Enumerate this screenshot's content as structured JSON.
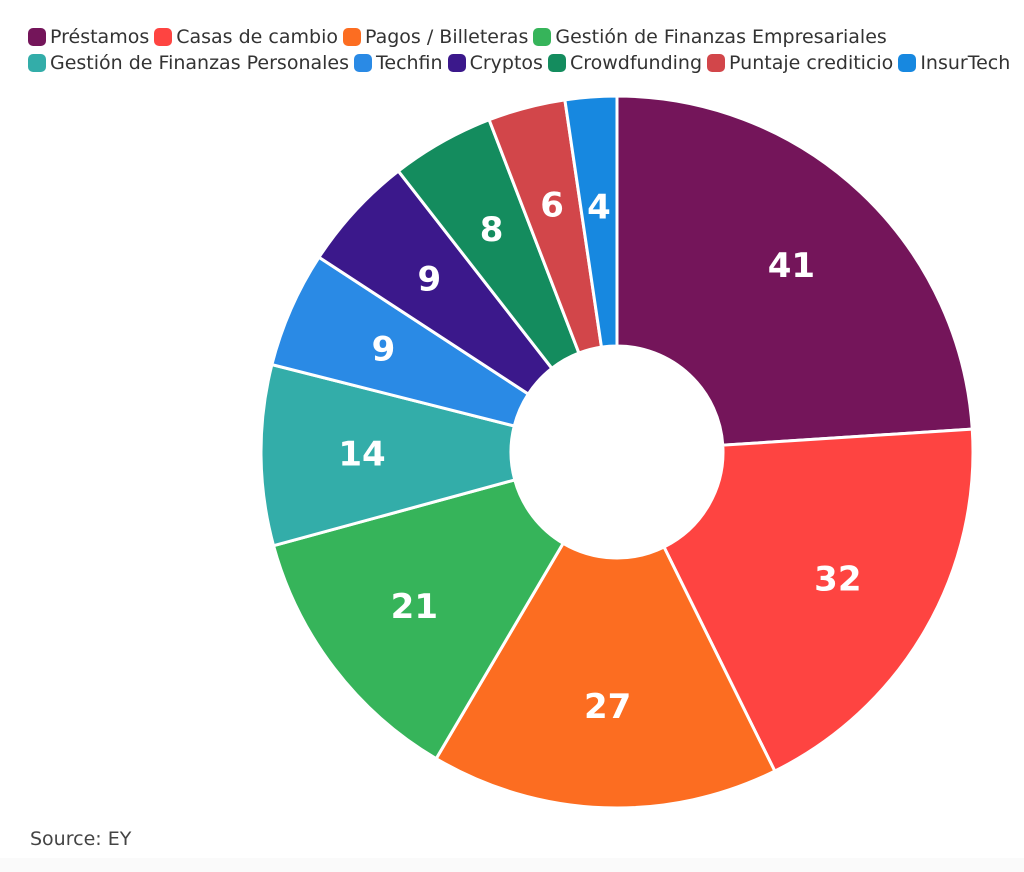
{
  "chart_data": {
    "type": "pie",
    "style": "donut",
    "categories": [
      "Préstamos",
      "Casas de cambio",
      "Pagos / Billeteras",
      "Gestión de Finanzas Empresariales",
      "Gestión de Finanzas Personales",
      "Techfin",
      "Cryptos",
      "Crowdfunding",
      "Puntaje crediticio",
      "InsurTech"
    ],
    "values": [
      41,
      32,
      27,
      21,
      14,
      9,
      9,
      8,
      6,
      4
    ],
    "colors": [
      "#74155a",
      "#fe4441",
      "#fc6d21",
      "#36b45a",
      "#33ada9",
      "#2a8ae5",
      "#3b188b",
      "#148c5e",
      "#d2464a",
      "#1788e0"
    ],
    "legend_position": "top"
  },
  "source": "Source: EY"
}
